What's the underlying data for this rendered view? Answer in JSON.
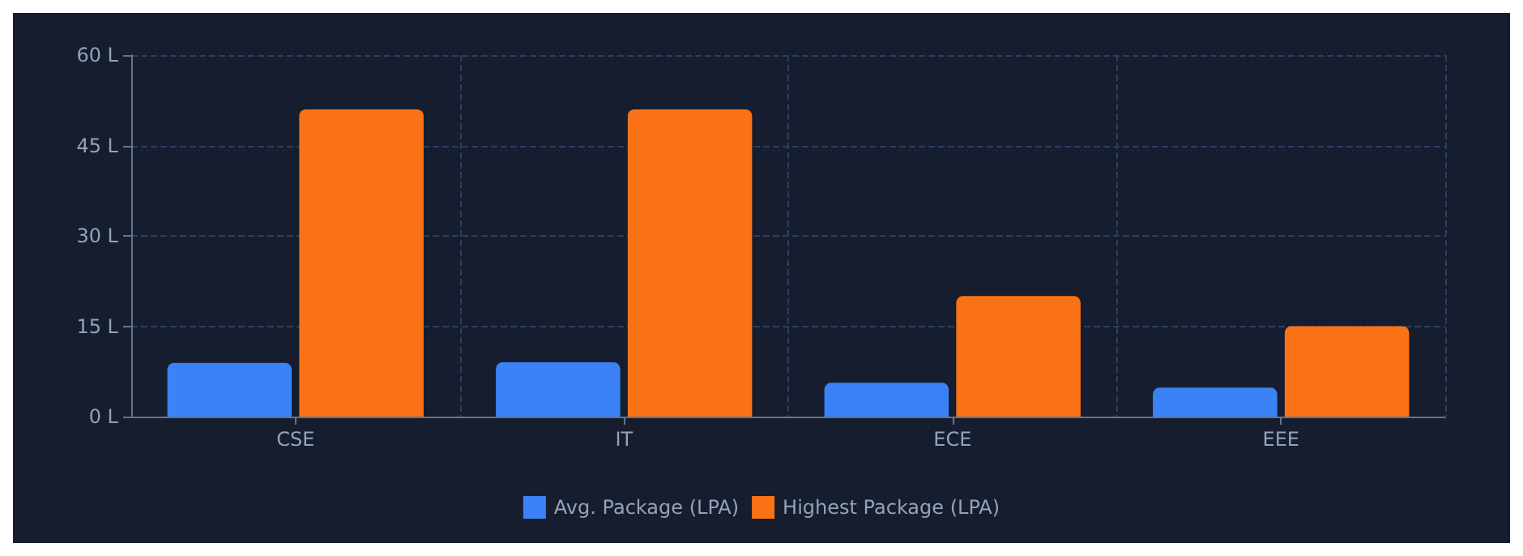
{
  "chart_data": {
    "type": "bar",
    "categories": [
      "CSE",
      "IT",
      "ECE",
      "EEE"
    ],
    "series": [
      {
        "name": "Avg. Package (LPA)",
        "color": "#3b82f6",
        "values": [
          8.9,
          9.0,
          5.6,
          4.8
        ]
      },
      {
        "name": "Highest Package (LPA)",
        "color": "#f97316",
        "values": [
          51,
          51,
          20,
          15
        ]
      }
    ],
    "ylim": [
      0,
      60
    ],
    "yticks": [
      {
        "value": 0,
        "label": "0 L"
      },
      {
        "value": 15,
        "label": "15 L"
      },
      {
        "value": 30,
        "label": "30 L"
      },
      {
        "value": 45,
        "label": "45 L"
      },
      {
        "value": 60,
        "label": "60 L"
      }
    ],
    "grid": true,
    "legend": "bottom"
  }
}
